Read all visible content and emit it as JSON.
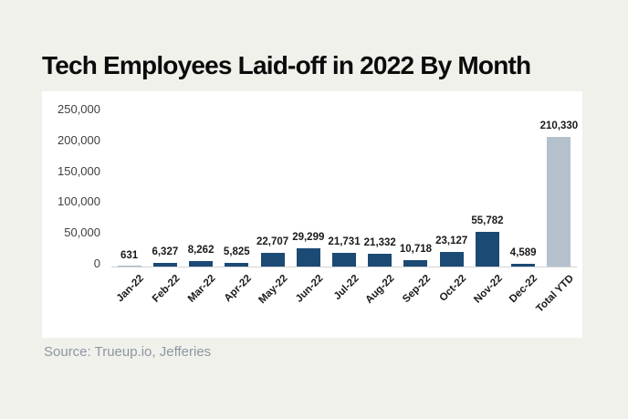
{
  "title": "Tech Employees Laid-off in 2022 By Month",
  "source": "Source: Trueup.io, Jefferies",
  "colors": {
    "page_background": "#f0f1ea",
    "panel_background": "#ffffff",
    "bar": "#1b4a74",
    "total_bar": "#b5c0cd",
    "axis_line": "#d4d4d4",
    "title_text": "#0b0b0b",
    "tick_text": "#404040",
    "value_label_text": "#1a1a1a",
    "source_text": "#8e96a3"
  },
  "chart_data": {
    "type": "bar",
    "title": "Tech Employees Laid-off in 2022 By Month",
    "categories": [
      "Jan-22",
      "Feb-22",
      "Mar-22",
      "Apr-22",
      "May-22",
      "Jun-22",
      "Jul-22",
      "Aug-22",
      "Sep-22",
      "Oct-22",
      "Nov-22",
      "Dec-22",
      "Total YTD"
    ],
    "values": [
      631,
      6327,
      8262,
      5825,
      22707,
      29299,
      21731,
      21332,
      10718,
      23127,
      55782,
      4589,
      210330
    ],
    "value_labels": [
      "631",
      "6,327",
      "8,262",
      "5,825",
      "22,707",
      "29,299",
      "21,731",
      "21,332",
      "10,718",
      "23,127",
      "55,782",
      "4,589",
      "210,330"
    ],
    "xlabel": "",
    "ylabel": "",
    "ylim": [
      0,
      250000
    ],
    "yticks": [
      {
        "value": 0,
        "label": "0"
      },
      {
        "value": 50000,
        "label": "50,000"
      },
      {
        "value": 100000,
        "label": "100,000"
      },
      {
        "value": 150000,
        "label": "150,000"
      },
      {
        "value": 200000,
        "label": "200,000"
      },
      {
        "value": 250000,
        "label": "250,000"
      }
    ],
    "grid": false,
    "legend": null,
    "data_labels": true,
    "highlight": {
      "category": "Total YTD",
      "reason": "summary-total-bar"
    }
  }
}
